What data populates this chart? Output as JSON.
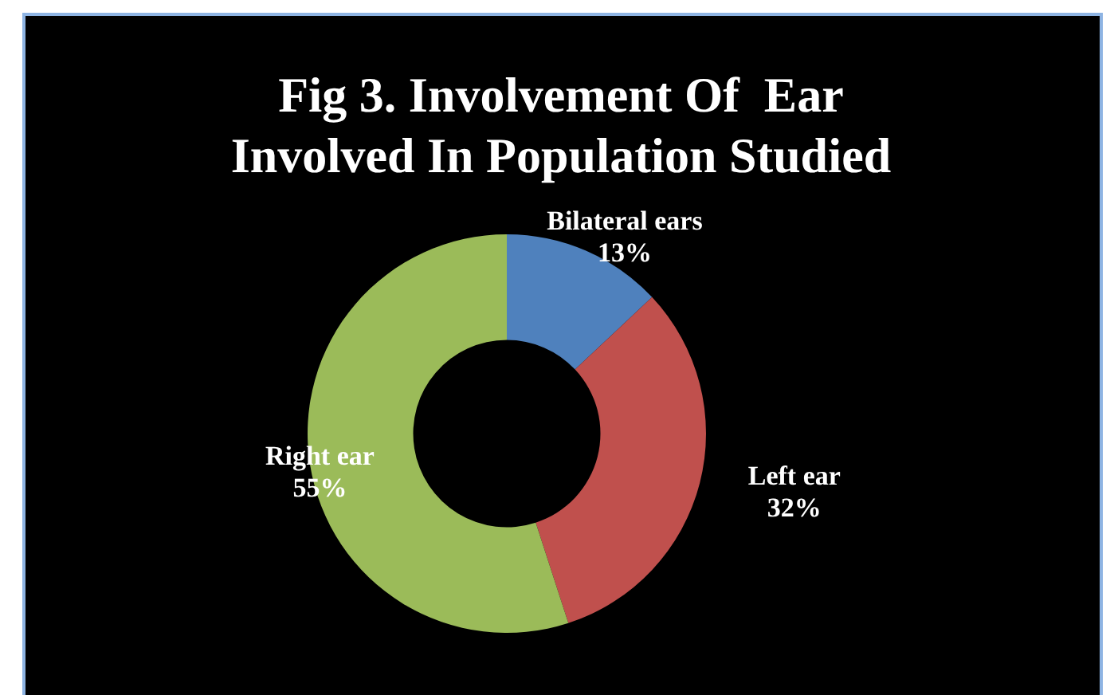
{
  "chart_data": {
    "type": "donut",
    "title": "Fig 3. Involvement Of  Ear\nInvolved In Population Studied",
    "categories": [
      "Bilateral ears",
      "Left ear",
      "Right ear"
    ],
    "values": [
      13,
      32,
      55
    ],
    "colors": [
      "#4f81bd",
      "#c0504d",
      "#9bbb59"
    ],
    "value_labels": [
      "13%",
      "32%",
      "55%"
    ],
    "legend": false
  }
}
